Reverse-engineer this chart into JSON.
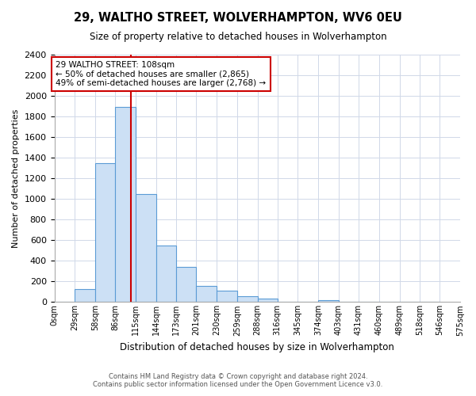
{
  "title": "29, WALTHO STREET, WOLVERHAMPTON, WV6 0EU",
  "subtitle": "Size of property relative to detached houses in Wolverhampton",
  "bar_values": [
    0,
    125,
    1350,
    1890,
    1050,
    550,
    340,
    155,
    110,
    60,
    30,
    0,
    0,
    15,
    0,
    0,
    0,
    5,
    0
  ],
  "bin_edges": [
    0,
    29,
    58,
    86,
    115,
    144,
    173,
    201,
    230,
    259,
    288,
    316,
    345,
    374,
    403,
    431,
    460,
    489,
    518,
    546
  ],
  "x_labels": [
    "0sqm",
    "29sqm",
    "58sqm",
    "86sqm",
    "115sqm",
    "144sqm",
    "173sqm",
    "201sqm",
    "230sqm",
    "259sqm",
    "288sqm",
    "316sqm",
    "345sqm",
    "374sqm",
    "403sqm",
    "431sqm",
    "460sqm",
    "489sqm",
    "518sqm",
    "546sqm",
    "575sqm"
  ],
  "bar_color": "#cce0f5",
  "bar_edge_color": "#5b9bd5",
  "vline_x": 108,
  "vline_color": "#cc0000",
  "ylabel": "Number of detached properties",
  "xlabel": "Distribution of detached houses by size in Wolverhampton",
  "ylim": [
    0,
    2400
  ],
  "yticks": [
    0,
    200,
    400,
    600,
    800,
    1000,
    1200,
    1400,
    1600,
    1800,
    2000,
    2200,
    2400
  ],
  "annotation_title": "29 WALTHO STREET: 108sqm",
  "annotation_line1": "← 50% of detached houses are smaller (2,865)",
  "annotation_line2": "49% of semi-detached houses are larger (2,768) →",
  "annotation_box_color": "#ffffff",
  "annotation_box_edge": "#cc0000",
  "footer1": "Contains HM Land Registry data © Crown copyright and database right 2024.",
  "footer2": "Contains public sector information licensed under the Open Government Licence v3.0.",
  "bg_color": "#ffffff",
  "grid_color": "#d0d8e8"
}
